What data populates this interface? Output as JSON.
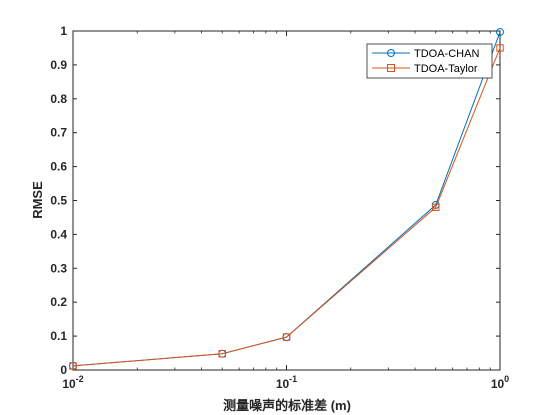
{
  "chart_data": {
    "type": "line",
    "xscale": "log",
    "xlim": [
      0.01,
      1
    ],
    "ylim": [
      0,
      1
    ],
    "xticks": [
      0.01,
      0.1,
      1
    ],
    "xtick_labels": [
      {
        "base": "10",
        "exp": "-2"
      },
      {
        "base": "10",
        "exp": "-1"
      },
      {
        "base": "10",
        "exp": "0"
      }
    ],
    "yticks": [
      0,
      0.1,
      0.2,
      0.3,
      0.4,
      0.5,
      0.6,
      0.7,
      0.8,
      0.9,
      1
    ],
    "ytick_labels": [
      "0",
      "0.1",
      "0.2",
      "0.3",
      "0.4",
      "0.5",
      "0.6",
      "0.7",
      "0.8",
      "0.9",
      "1"
    ],
    "xlabel": "测量噪声的标准差 (m)",
    "ylabel": "RMSE",
    "grid": false,
    "legend": "top-right",
    "x": [
      0.01,
      0.05,
      0.1,
      0.5,
      1
    ],
    "series": [
      {
        "name": "TDOA-CHAN",
        "color": "#0072bd",
        "marker": "circle",
        "values": [
          0.012,
          0.048,
          0.097,
          0.487,
          0.997
        ]
      },
      {
        "name": "TDOA-Taylor",
        "color": "#d95319",
        "marker": "square",
        "values": [
          0.012,
          0.048,
          0.097,
          0.48,
          0.95
        ]
      }
    ]
  }
}
